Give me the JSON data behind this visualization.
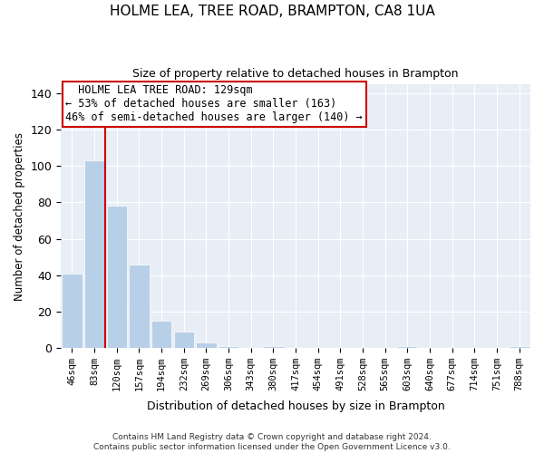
{
  "title": "HOLME LEA, TREE ROAD, BRAMPTON, CA8 1UA",
  "subtitle": "Size of property relative to detached houses in Brampton",
  "xlabel": "Distribution of detached houses by size in Brampton",
  "ylabel": "Number of detached properties",
  "categories": [
    "46sqm",
    "83sqm",
    "120sqm",
    "157sqm",
    "194sqm",
    "232sqm",
    "269sqm",
    "306sqm",
    "343sqm",
    "380sqm",
    "417sqm",
    "454sqm",
    "491sqm",
    "528sqm",
    "565sqm",
    "603sqm",
    "640sqm",
    "677sqm",
    "714sqm",
    "751sqm",
    "788sqm"
  ],
  "values": [
    41,
    103,
    78,
    46,
    15,
    9,
    3,
    1,
    0,
    1,
    0,
    0,
    0,
    0,
    0,
    1,
    0,
    0,
    0,
    0,
    1
  ],
  "bar_color": "#b8cfe8",
  "bar_edge_color": "#b8cfe8",
  "property_line_x": 1.5,
  "property_size": "129sqm",
  "property_name": "HOLME LEA TREE ROAD",
  "pct_smaller": 53,
  "n_smaller": 163,
  "pct_larger": 46,
  "n_larger": 140,
  "annotation_box_color": "#ffffff",
  "annotation_border_color": "#cc0000",
  "line_color": "#cc0000",
  "ylim": [
    0,
    145
  ],
  "yticks": [
    0,
    20,
    40,
    60,
    80,
    100,
    120,
    140
  ],
  "background_color": "#e8eef6",
  "footer_line1": "Contains HM Land Registry data © Crown copyright and database right 2024.",
  "footer_line2": "Contains public sector information licensed under the Open Government Licence v3.0."
}
